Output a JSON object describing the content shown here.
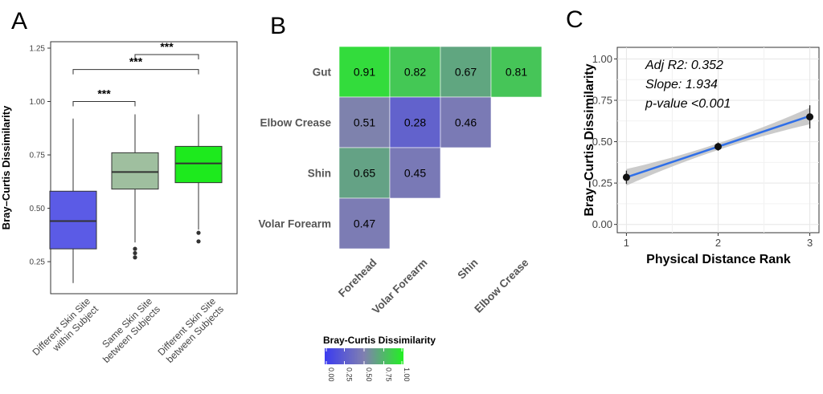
{
  "chart_data": [
    {
      "id": "A",
      "type": "box",
      "panel_label": "A",
      "ylabel": "Bray–Curtis Dissimilarity",
      "ylim": [
        0.1,
        1.28
      ],
      "yticks": [
        0.25,
        0.5,
        0.75,
        1.0,
        1.25
      ],
      "ytick_labels": [
        "0.25",
        "0.50",
        "0.75",
        "1.00",
        "1.25"
      ],
      "grid": false,
      "categories": [
        {
          "label_lines": [
            "Different Skin Site",
            "within Subject"
          ],
          "color": "#5b5be6",
          "whisker_low": 0.15,
          "q1": 0.31,
          "median": 0.44,
          "q3": 0.58,
          "whisker_high": 0.92,
          "outliers": []
        },
        {
          "label_lines": [
            "Same Skin Site",
            "between Subjects"
          ],
          "color": "#9fbf9f",
          "whisker_low": 0.34,
          "q1": 0.59,
          "median": 0.67,
          "q3": 0.76,
          "whisker_high": 0.94,
          "outliers": [
            0.27,
            0.29,
            0.31
          ]
        },
        {
          "label_lines": [
            "Different Skin Site",
            "between Subjects"
          ],
          "color": "#1dea1d",
          "whisker_low": 0.4,
          "q1": 0.62,
          "median": 0.71,
          "q3": 0.79,
          "whisker_high": 0.94,
          "outliers": [
            0.345,
            0.385
          ]
        }
      ],
      "significance": [
        {
          "from": 0,
          "to": 1,
          "y": 1.0,
          "label": "***"
        },
        {
          "from": 0,
          "to": 2,
          "y": 1.15,
          "label": "***"
        },
        {
          "from": 1,
          "to": 2,
          "y": 1.22,
          "label": "***"
        }
      ]
    },
    {
      "id": "B",
      "type": "heatmap",
      "panel_label": "B",
      "rows": [
        "Gut",
        "Elbow Crease",
        "Shin",
        "Volar Forearm"
      ],
      "cols": [
        "Forehead",
        "Volar Forearm",
        "Shin",
        "Elbow Crease"
      ],
      "cells": [
        [
          0.91,
          0.82,
          0.67,
          0.81
        ],
        [
          0.51,
          0.28,
          0.46,
          null
        ],
        [
          0.65,
          0.45,
          null,
          null
        ],
        [
          0.47,
          null,
          null,
          null
        ]
      ],
      "labels": [
        [
          "0.91",
          "0.82",
          "0.67",
          "0.81"
        ],
        [
          "0.51",
          "0.28",
          "0.46",
          ""
        ],
        [
          "0.65",
          "0.45",
          "",
          ""
        ],
        [
          "0.47",
          "",
          "",
          ""
        ]
      ],
      "legend": {
        "title": "Bray-Curtis Dissimilarity",
        "range": [
          0,
          1
        ],
        "low_color": "#3b3bf0",
        "mid_color": "#8080b0",
        "high_color": "#22f022",
        "ticks": [
          "0.00",
          "0.25",
          "0.50",
          "0.75",
          "1.00"
        ]
      }
    },
    {
      "id": "C",
      "type": "line",
      "panel_label": "C",
      "xlabel": "Physical Distance Rank",
      "ylabel": "Bray–Curtis Dissimilarity",
      "xlim": [
        0.9,
        3.1
      ],
      "ylim": [
        -0.05,
        1.07
      ],
      "xticks": [
        1,
        2,
        3
      ],
      "xtick_labels": [
        "1",
        "2",
        "3"
      ],
      "yticks": [
        0.0,
        0.25,
        0.5,
        0.75,
        1.0
      ],
      "ytick_labels": [
        "0.00",
        "0.25",
        "0.50",
        "0.75",
        "1.00"
      ],
      "grid": true,
      "line_color": "#2f6fe8",
      "points": [
        {
          "x": 1,
          "y": 0.285,
          "err_low": 0.245,
          "err_high": 0.325
        },
        {
          "x": 2,
          "y": 0.47,
          "err_low": 0.445,
          "err_high": 0.495
        },
        {
          "x": 3,
          "y": 0.65,
          "err_low": 0.58,
          "err_high": 0.72
        }
      ],
      "fit": {
        "x": [
          1,
          3
        ],
        "y": [
          0.285,
          0.655
        ],
        "band_halfwidth_ends": 0.05,
        "band_halfwidth_mid": 0.02
      },
      "annotations": [
        "Adj R2: 0.352",
        "Slope: 1.934",
        "p-value <0.001"
      ]
    }
  ]
}
